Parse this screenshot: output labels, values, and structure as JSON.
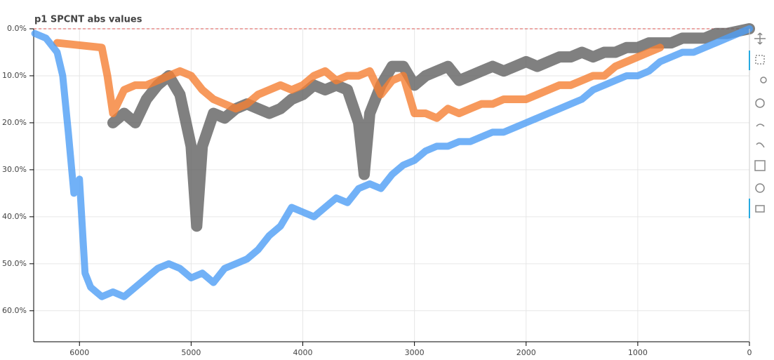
{
  "chart_data": {
    "type": "line",
    "title": "p1 SPCNT abs values",
    "xlim": [
      6410,
      0
    ],
    "ylim": [
      0,
      66.6
    ],
    "xticks": [
      6000,
      5000,
      4000,
      3000,
      2000,
      1000,
      0
    ],
    "yticks": [
      {
        "value": 0,
        "label": "0.0%"
      },
      {
        "value": 10,
        "label": "10.0%"
      },
      {
        "value": 20,
        "label": "20.0%"
      },
      {
        "value": 30,
        "label": "30.0%"
      },
      {
        "value": 40,
        "label": "40.0%"
      },
      {
        "value": 50,
        "label": "50.0%"
      },
      {
        "value": 60,
        "label": "60.0%"
      }
    ],
    "grid": true,
    "series": [
      {
        "color": "#606060",
        "x": [
          5700,
          5600,
          5500,
          5400,
          5300,
          5200,
          5100,
          5000,
          4950,
          4900,
          4800,
          4700,
          4600,
          4500,
          4400,
          4300,
          4200,
          4100,
          4000,
          3900,
          3800,
          3700,
          3600,
          3500,
          3450,
          3400,
          3300,
          3200,
          3100,
          3000,
          2900,
          2800,
          2700,
          2600,
          2500,
          2400,
          2300,
          2200,
          2100,
          2000,
          1900,
          1800,
          1700,
          1600,
          1500,
          1400,
          1300,
          1200,
          1100,
          1000,
          900,
          800,
          700,
          600,
          500,
          400,
          300,
          200,
          100,
          0
        ],
        "values": [
          20,
          18,
          20,
          15,
          12,
          10,
          14,
          25,
          42,
          25,
          18,
          19,
          17,
          16,
          17,
          18,
          17,
          15,
          14,
          12,
          13,
          12,
          13,
          20,
          31,
          18,
          12,
          8,
          8,
          12,
          10,
          9,
          8,
          11,
          10,
          9,
          8,
          9,
          8,
          7,
          8,
          7,
          6,
          6,
          5,
          6,
          5,
          5,
          4,
          4,
          3,
          3,
          3,
          2,
          2,
          2,
          1,
          1,
          0.5,
          0
        ]
      },
      {
        "color": "#f57f33",
        "x": [
          6200,
          5800,
          5750,
          5700,
          5600,
          5500,
          5400,
          5300,
          5200,
          5100,
          5000,
          4900,
          4800,
          4700,
          4600,
          4500,
          4400,
          4300,
          4200,
          4100,
          4000,
          3900,
          3800,
          3700,
          3600,
          3500,
          3400,
          3300,
          3200,
          3100,
          3000,
          2900,
          2800,
          2700,
          2600,
          2500,
          2400,
          2300,
          2200,
          2100,
          2000,
          1900,
          1800,
          1700,
          1600,
          1500,
          1400,
          1300,
          1200,
          1100,
          1000,
          900,
          800
        ],
        "values": [
          3,
          4,
          10,
          18,
          13,
          12,
          12,
          11,
          10,
          9,
          10,
          13,
          15,
          16,
          17,
          16,
          14,
          13,
          12,
          13,
          12,
          10,
          9,
          11,
          10,
          10,
          9,
          14,
          11,
          10,
          18,
          18,
          19,
          17,
          18,
          17,
          16,
          16,
          15,
          15,
          15,
          14,
          13,
          12,
          12,
          11,
          10,
          10,
          8,
          7,
          6,
          5,
          4
        ]
      },
      {
        "color": "#4d9df5",
        "x": [
          6400,
          6300,
          6200,
          6150,
          6100,
          6050,
          6000,
          5950,
          5900,
          5850,
          5800,
          5700,
          5600,
          5500,
          5400,
          5300,
          5200,
          5100,
          5000,
          4900,
          4800,
          4700,
          4600,
          4500,
          4400,
          4300,
          4200,
          4100,
          4000,
          3900,
          3800,
          3700,
          3600,
          3500,
          3400,
          3300,
          3200,
          3100,
          3000,
          2900,
          2800,
          2700,
          2600,
          2500,
          2400,
          2300,
          2200,
          2100,
          2000,
          1900,
          1800,
          1700,
          1600,
          1500,
          1400,
          1300,
          1200,
          1100,
          1000,
          900,
          800,
          700,
          600,
          500,
          400,
          300,
          200,
          100,
          0
        ],
        "values": [
          1,
          2,
          5,
          10,
          22,
          35,
          32,
          52,
          55,
          56,
          57,
          56,
          57,
          55,
          53,
          51,
          50,
          51,
          53,
          52,
          54,
          51,
          50,
          49,
          47,
          44,
          42,
          38,
          39,
          40,
          38,
          36,
          37,
          34,
          33,
          34,
          31,
          29,
          28,
          26,
          25,
          25,
          24,
          24,
          23,
          22,
          22,
          21,
          20,
          19,
          18,
          17,
          16,
          15,
          13,
          12,
          11,
          10,
          10,
          9,
          7,
          6,
          5,
          5,
          4,
          3,
          2,
          1,
          0
        ]
      }
    ]
  }
}
